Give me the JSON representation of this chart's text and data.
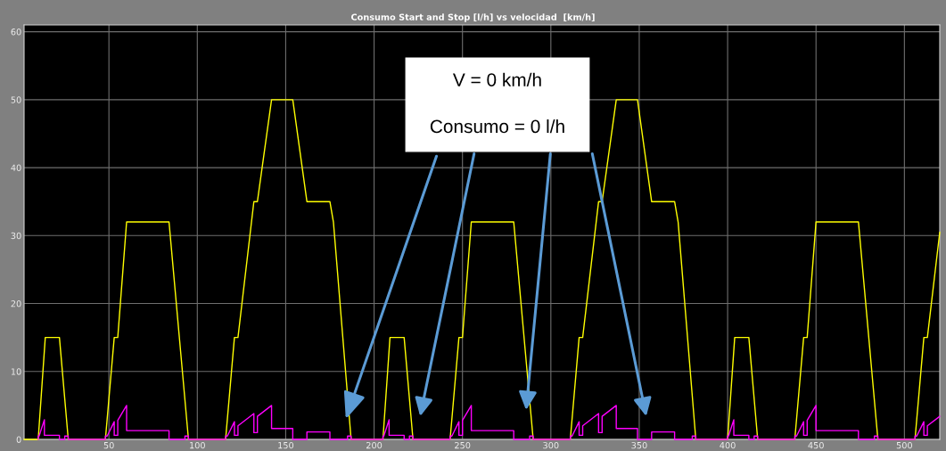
{
  "chart_data": {
    "type": "line",
    "title": "Consumo Start and Stop [l/h] vs velocidad  [km/h]",
    "series": [
      {
        "color": "#ffff00",
        "x": [
          2,
          10,
          14,
          22,
          27,
          48,
          53,
          55,
          60,
          84,
          95,
          116,
          121,
          123,
          132,
          134,
          142,
          154,
          162,
          175,
          177,
          187,
          205,
          209,
          217,
          222,
          243,
          248,
          250,
          255,
          279,
          290,
          311,
          316,
          318,
          327,
          329,
          337,
          349,
          357,
          370,
          372,
          382,
          400,
          404,
          412,
          417,
          438,
          443,
          445,
          450,
          474,
          485,
          506,
          511,
          513,
          520
        ],
        "values": [
          0,
          0,
          15,
          15,
          0,
          0,
          15,
          15,
          32,
          32,
          0,
          0,
          15,
          15,
          35,
          35,
          50,
          50,
          35,
          35,
          32,
          0,
          0,
          15,
          15,
          0,
          0,
          15,
          15,
          32,
          32,
          0,
          0,
          15,
          15,
          35,
          35,
          50,
          50,
          35,
          35,
          32,
          0,
          0,
          15,
          15,
          0,
          0,
          15,
          15,
          32,
          32,
          0,
          0,
          15,
          15,
          30.5
        ]
      },
      {
        "color": "#ff00ff",
        "x": [
          10,
          10,
          10.5,
          13.5,
          13.5,
          22,
          22,
          25,
          25,
          27,
          27,
          48,
          48,
          49,
          53,
          53,
          55,
          55,
          60,
          60,
          84,
          84,
          93,
          93,
          95,
          95,
          116,
          116,
          117,
          121,
          121,
          123,
          123,
          132,
          132,
          134,
          134,
          142,
          142,
          154,
          154,
          162,
          162,
          175,
          175,
          185,
          185,
          187,
          187,
          205,
          205,
          205.5,
          208.5,
          208.5,
          217,
          217,
          220,
          220,
          222,
          222,
          243,
          243,
          244,
          248,
          248,
          250,
          250,
          255,
          255,
          279,
          279,
          288,
          288,
          290,
          290,
          311,
          311,
          312,
          316,
          316,
          318,
          318,
          327,
          327,
          329,
          329,
          337,
          337,
          349,
          349,
          357,
          357,
          370,
          370,
          380,
          380,
          382,
          382,
          400,
          400,
          400.5,
          403.5,
          403.5,
          412,
          412,
          415,
          415,
          417,
          417,
          438,
          438,
          439,
          443,
          443,
          445,
          445,
          450,
          450,
          474,
          474,
          483,
          483,
          485,
          485,
          506,
          506,
          507,
          511,
          511,
          513,
          513,
          520
        ],
        "values": [
          0,
          0.5,
          0.5,
          2.9,
          0.6,
          0.6,
          0,
          0,
          0.5,
          0.5,
          0,
          0,
          0.5,
          0.5,
          2.6,
          0.6,
          0.6,
          2.8,
          5,
          1.3,
          1.3,
          0,
          0,
          0.5,
          0.5,
          0,
          0,
          0.5,
          0.5,
          2.6,
          0.6,
          0.6,
          2.0,
          3.8,
          1.0,
          1.0,
          3.4,
          5.0,
          1.6,
          1.6,
          0,
          0,
          1.1,
          1.1,
          0,
          0,
          0.5,
          0.5,
          0,
          0,
          0.5,
          0.5,
          2.9,
          0.6,
          0.6,
          0,
          0,
          0.5,
          0.5,
          0,
          0,
          0.5,
          0.5,
          2.6,
          0.6,
          0.6,
          2.8,
          5,
          1.3,
          1.3,
          0,
          0,
          0.5,
          0.5,
          0,
          0,
          0.5,
          0.5,
          2.6,
          0.6,
          0.6,
          2.0,
          3.8,
          1.0,
          1.0,
          3.4,
          5.0,
          1.6,
          1.6,
          0,
          0,
          1.1,
          1.1,
          0,
          0,
          0.5,
          0.5,
          0,
          0,
          0.5,
          0.5,
          2.9,
          0.6,
          0.6,
          0,
          0,
          0.5,
          0.5,
          0,
          0,
          0.5,
          0.5,
          2.6,
          0.6,
          0.6,
          2.8,
          5,
          1.3,
          1.3,
          0,
          0,
          0.5,
          0.5,
          0,
          0,
          0.5,
          0.5,
          2.6,
          0.6,
          0.6,
          2.0,
          3.4
        ]
      }
    ],
    "xlim": [
      2,
      520
    ],
    "ylim": [
      0,
      61
    ],
    "xticks": [
      50,
      100,
      150,
      200,
      250,
      300,
      350,
      400,
      450,
      500
    ],
    "yticks": [
      0,
      10,
      20,
      30,
      40,
      50,
      60
    ],
    "grid": true,
    "annotations": [
      "V = 0 km/h",
      {
        "text": "Consumo = 0 l/h",
        "x": 184,
        "y": 3
      }
    ]
  }
}
